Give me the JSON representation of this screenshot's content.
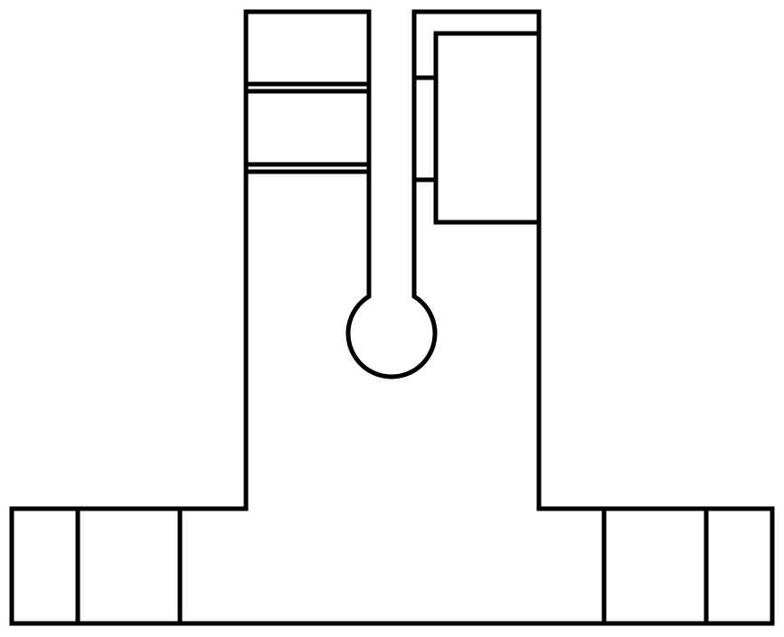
{
  "diagram": {
    "kind": "mechanical-part-line-drawing",
    "colors": {
      "stroke": "#000000",
      "background": "#ffffff"
    },
    "parts": [
      "main-body-outline",
      "left-upright-slot",
      "central-split-with-circular-hole",
      "right-upright-inset-block",
      "left-base-foot",
      "right-base-foot"
    ]
  }
}
